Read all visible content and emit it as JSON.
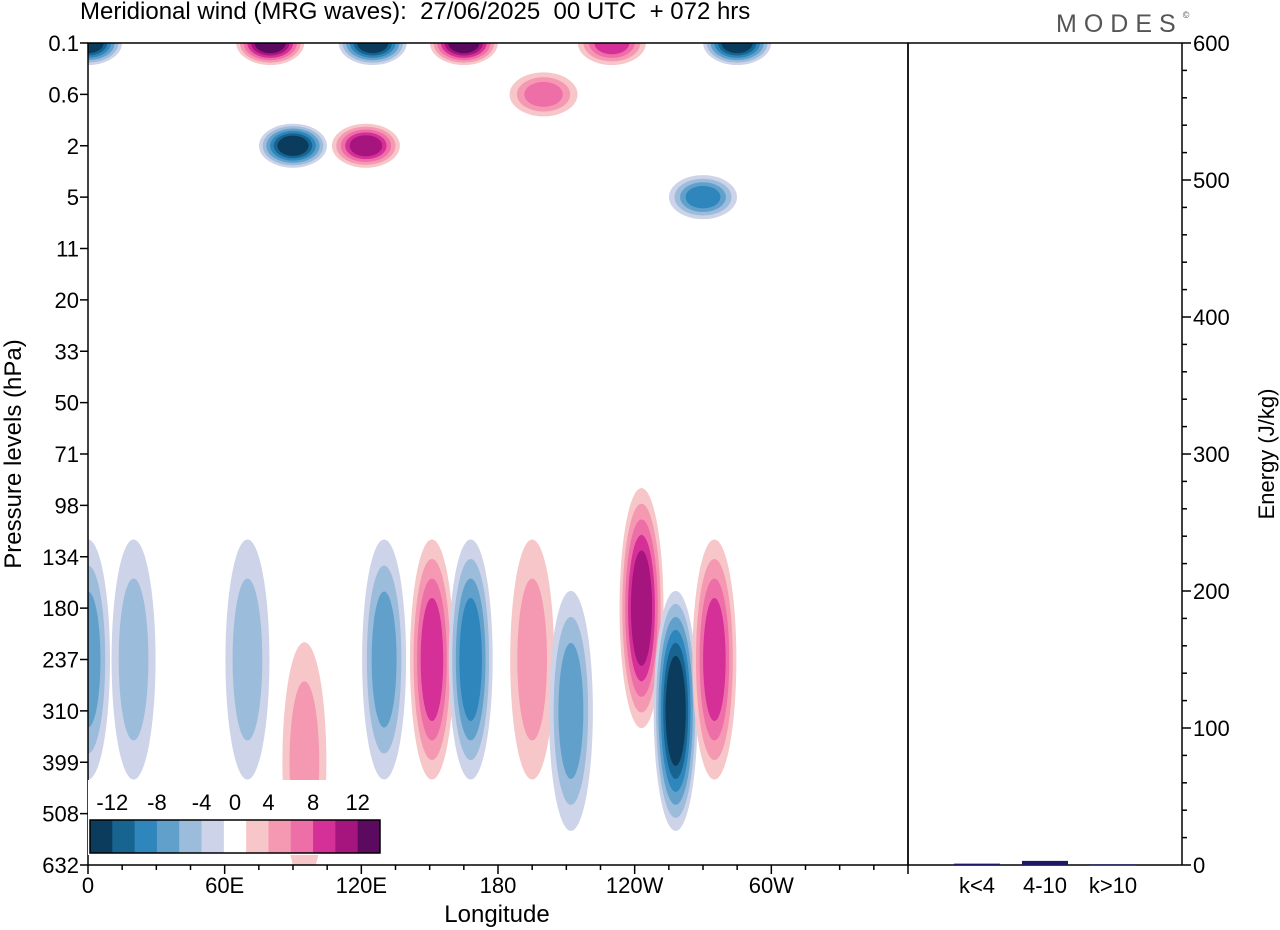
{
  "title": "Meridional wind (MRG waves):  27/06/2025  00 UTC  + 072 hrs",
  "brand": "MODES",
  "brand_mark": "©",
  "chart_data": [
    {
      "type": "heatmap",
      "xlabel": "Longitude",
      "ylabel": "Pressure levels (hPa)",
      "x_ticks": [
        "0",
        "60E",
        "120E",
        "180",
        "120W",
        "60W"
      ],
      "y_ticks": [
        "0.1",
        "0.6",
        "2",
        "5",
        "11",
        "20",
        "33",
        "50",
        "71",
        "98",
        "134",
        "180",
        "237",
        "310",
        "399",
        "508",
        "632"
      ],
      "colorbar": {
        "labels": [
          "-12",
          "-8",
          "-4",
          "0",
          "4",
          "8",
          "12"
        ],
        "levels": [
          -14,
          -12,
          -10,
          -8,
          -6,
          -4,
          -2,
          2,
          4,
          6,
          8,
          10,
          12,
          14
        ],
        "colors": [
          "#0b3c5d",
          "#16648f",
          "#2e86bd",
          "#62a0cc",
          "#9cbcdb",
          "#cdd3e8",
          "#ffffff",
          "#f7c6c9",
          "#f598b2",
          "#ee6ea7",
          "#d52f98",
          "#a6147e",
          "#5c0a5f"
        ]
      },
      "highlights": [
        {
          "lon": 0,
          "level": "0.1",
          "sign": -1,
          "value": -14
        },
        {
          "lon": 80,
          "level": "0.1",
          "sign": 1,
          "value": 14
        },
        {
          "lon": 125,
          "level": "0.1",
          "sign": -1,
          "value": -14
        },
        {
          "lon": 165,
          "level": "0.1",
          "sign": 1,
          "value": 14
        },
        {
          "lon": 230,
          "level": "0.1",
          "sign": 1,
          "value": 10
        },
        {
          "lon": 285,
          "level": "0.1",
          "sign": -1,
          "value": -14
        },
        {
          "lon": 90,
          "level": "2",
          "sign": -1,
          "value": -14
        },
        {
          "lon": 122,
          "level": "2",
          "sign": 1,
          "value": 12
        },
        {
          "lon": 200,
          "level": "0.6",
          "sign": 1,
          "value": 8
        },
        {
          "lon": 270,
          "level": "5",
          "sign": -1,
          "value": -10
        },
        {
          "lon": 0,
          "level": "237",
          "sign": -1,
          "value": -8
        },
        {
          "lon": 20,
          "level": "237",
          "sign": -1,
          "value": -6
        },
        {
          "lon": 70,
          "level": "237",
          "sign": -1,
          "value": -6
        },
        {
          "lon": 95,
          "level": "399",
          "sign": 1,
          "value": 6
        },
        {
          "lon": 130,
          "level": "237",
          "sign": -1,
          "value": -8
        },
        {
          "lon": 151,
          "level": "237",
          "sign": 1,
          "value": 10
        },
        {
          "lon": 168,
          "level": "237",
          "sign": -1,
          "value": -10
        },
        {
          "lon": 195,
          "level": "237",
          "sign": 1,
          "value": 6
        },
        {
          "lon": 212,
          "level": "310",
          "sign": -1,
          "value": -8
        },
        {
          "lon": 243,
          "level": "180",
          "sign": 1,
          "value": 12
        },
        {
          "lon": 258,
          "level": "310",
          "sign": -1,
          "value": -14
        },
        {
          "lon": 275,
          "level": "237",
          "sign": 1,
          "value": 10
        }
      ]
    },
    {
      "type": "bar",
      "ylabel": "Energy (J/kg)",
      "categories": [
        "k<4",
        "4-10",
        "k>10"
      ],
      "values": [
        1,
        3,
        0.5
      ],
      "ylim": [
        0,
        600
      ],
      "y_ticks": [
        "0",
        "100",
        "200",
        "300",
        "400",
        "500",
        "600"
      ],
      "bar_color": "#1a1a66"
    }
  ]
}
